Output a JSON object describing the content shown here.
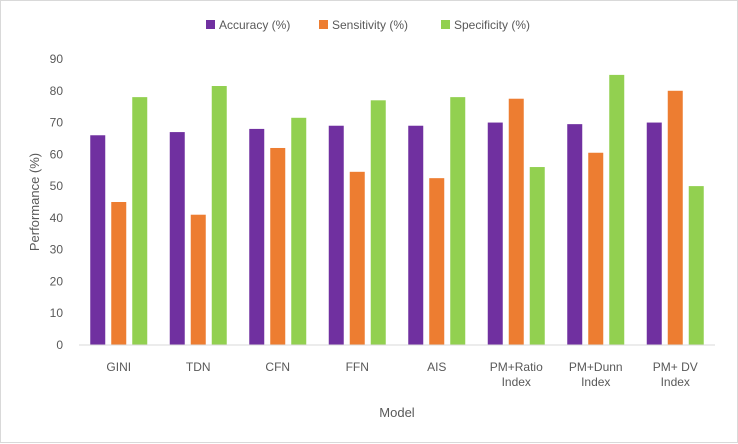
{
  "chart_data": {
    "type": "bar",
    "categories": [
      "GINI",
      "TDN",
      "CFN",
      "FFN",
      "AIS",
      "PM+Ratio Index",
      "PM+Dunn Index",
      "PM+ DV Index"
    ],
    "category_lines": [
      [
        "GINI"
      ],
      [
        "TDN"
      ],
      [
        "CFN"
      ],
      [
        "FFN"
      ],
      [
        "AIS"
      ],
      [
        "PM+Ratio",
        "Index"
      ],
      [
        "PM+Dunn",
        "Index"
      ],
      [
        "PM+ DV",
        "Index"
      ]
    ],
    "series": [
      {
        "name": "Accuracy (%)",
        "color": "#7030a0",
        "values": [
          66,
          67,
          68,
          69,
          69,
          70,
          69.5,
          70
        ]
      },
      {
        "name": "Sensitivity (%)",
        "color": "#ed7d31",
        "values": [
          45,
          41,
          62,
          54.5,
          52.5,
          77.5,
          60.5,
          80
        ]
      },
      {
        "name": "Specificity (%)",
        "color": "#92d050",
        "values": [
          78,
          81.5,
          71.5,
          77,
          78,
          56,
          85,
          50
        ]
      }
    ],
    "xlabel": "Model",
    "ylabel": "Performance (%)",
    "ylim": [
      0,
      90
    ],
    "yticks": [
      0,
      10,
      20,
      30,
      40,
      50,
      60,
      70,
      80,
      90
    ],
    "grid": false,
    "legend": "top"
  }
}
